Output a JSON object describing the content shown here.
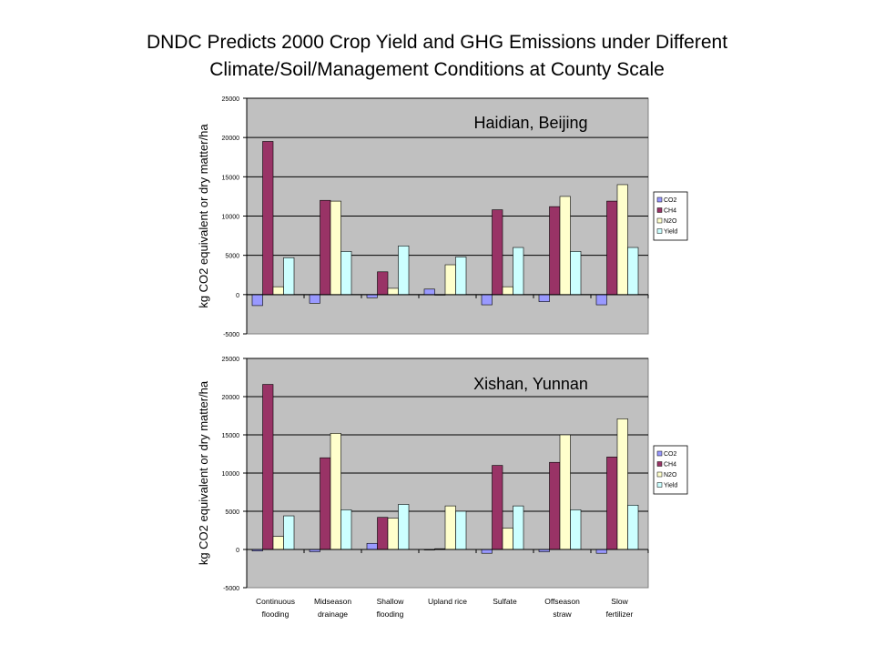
{
  "title": {
    "line1": "DNDC Predicts 2000 Crop Yield and GHG Emissions under Different",
    "line2": "Climate/Soil/Management Conditions at County Scale"
  },
  "colors": {
    "plot_bg": "#c0c0c0",
    "CO2": "#9999ff",
    "CH4": "#993366",
    "N2O": "#ffffcc",
    "Yield": "#ccffff"
  },
  "chart_data": [
    {
      "type": "bar",
      "title": "Haidian, Beijing",
      "xlabel": "",
      "ylabel": "kg CO2 equivalent or dry matter/ha",
      "ylim": [
        -5000,
        25000
      ],
      "yticks": [
        "25000",
        "20000",
        "15000",
        "10000",
        "5000",
        "0",
        "-5000"
      ],
      "grid": true,
      "legend_position": "right",
      "categories": [
        "Continuous flooding",
        "Midseason drainage",
        "Shallow flooding",
        "Upland rice",
        "Sulfate",
        "Offseason straw",
        "Slow fertilizer"
      ],
      "show_category_labels": false,
      "series": [
        {
          "name": "CO2",
          "values": [
            -1400,
            -1100,
            -400,
            700,
            -1300,
            -900,
            -1300
          ]
        },
        {
          "name": "CH4",
          "values": [
            19500,
            12000,
            2900,
            0,
            10800,
            11200,
            11900
          ]
        },
        {
          "name": "N2O",
          "values": [
            1000,
            11900,
            800,
            3800,
            1000,
            12500,
            14000
          ]
        },
        {
          "name": "Yield",
          "values": [
            4700,
            5500,
            6200,
            4800,
            6000,
            5500,
            6000
          ]
        }
      ]
    },
    {
      "type": "bar",
      "title": "Xishan, Yunnan",
      "xlabel": "",
      "ylabel": "kg CO2 equivalent or dry matter/ha",
      "ylim": [
        -5000,
        25000
      ],
      "yticks": [
        "25000",
        "20000",
        "15000",
        "10000",
        "5000",
        "0",
        "-5000"
      ],
      "grid": true,
      "legend_position": "right",
      "categories": [
        "Continuous flooding",
        "Midseason drainage",
        "Shallow flooding",
        "Upland rice",
        "Sulfate",
        "Offseason straw",
        "Slow fertilizer"
      ],
      "category_labels": [
        [
          "Continuous",
          "flooding"
        ],
        [
          "Midseason",
          "drainage"
        ],
        [
          "Shallow",
          "flooding"
        ],
        [
          "Upland rice"
        ],
        [
          "Sulfate"
        ],
        [
          "Offseason",
          "straw"
        ],
        [
          "Slow",
          "fertilizer"
        ]
      ],
      "show_category_labels": true,
      "series": [
        {
          "name": "CO2",
          "values": [
            -200,
            -300,
            800,
            0,
            -500,
            -300,
            -500
          ]
        },
        {
          "name": "CH4",
          "values": [
            21600,
            12000,
            4200,
            100,
            11000,
            11400,
            12100
          ]
        },
        {
          "name": "N2O",
          "values": [
            1700,
            15200,
            4100,
            5700,
            2800,
            15000,
            17100
          ]
        },
        {
          "name": "Yield",
          "values": [
            4400,
            5200,
            5900,
            5000,
            5700,
            5200,
            5800
          ]
        }
      ]
    }
  ]
}
